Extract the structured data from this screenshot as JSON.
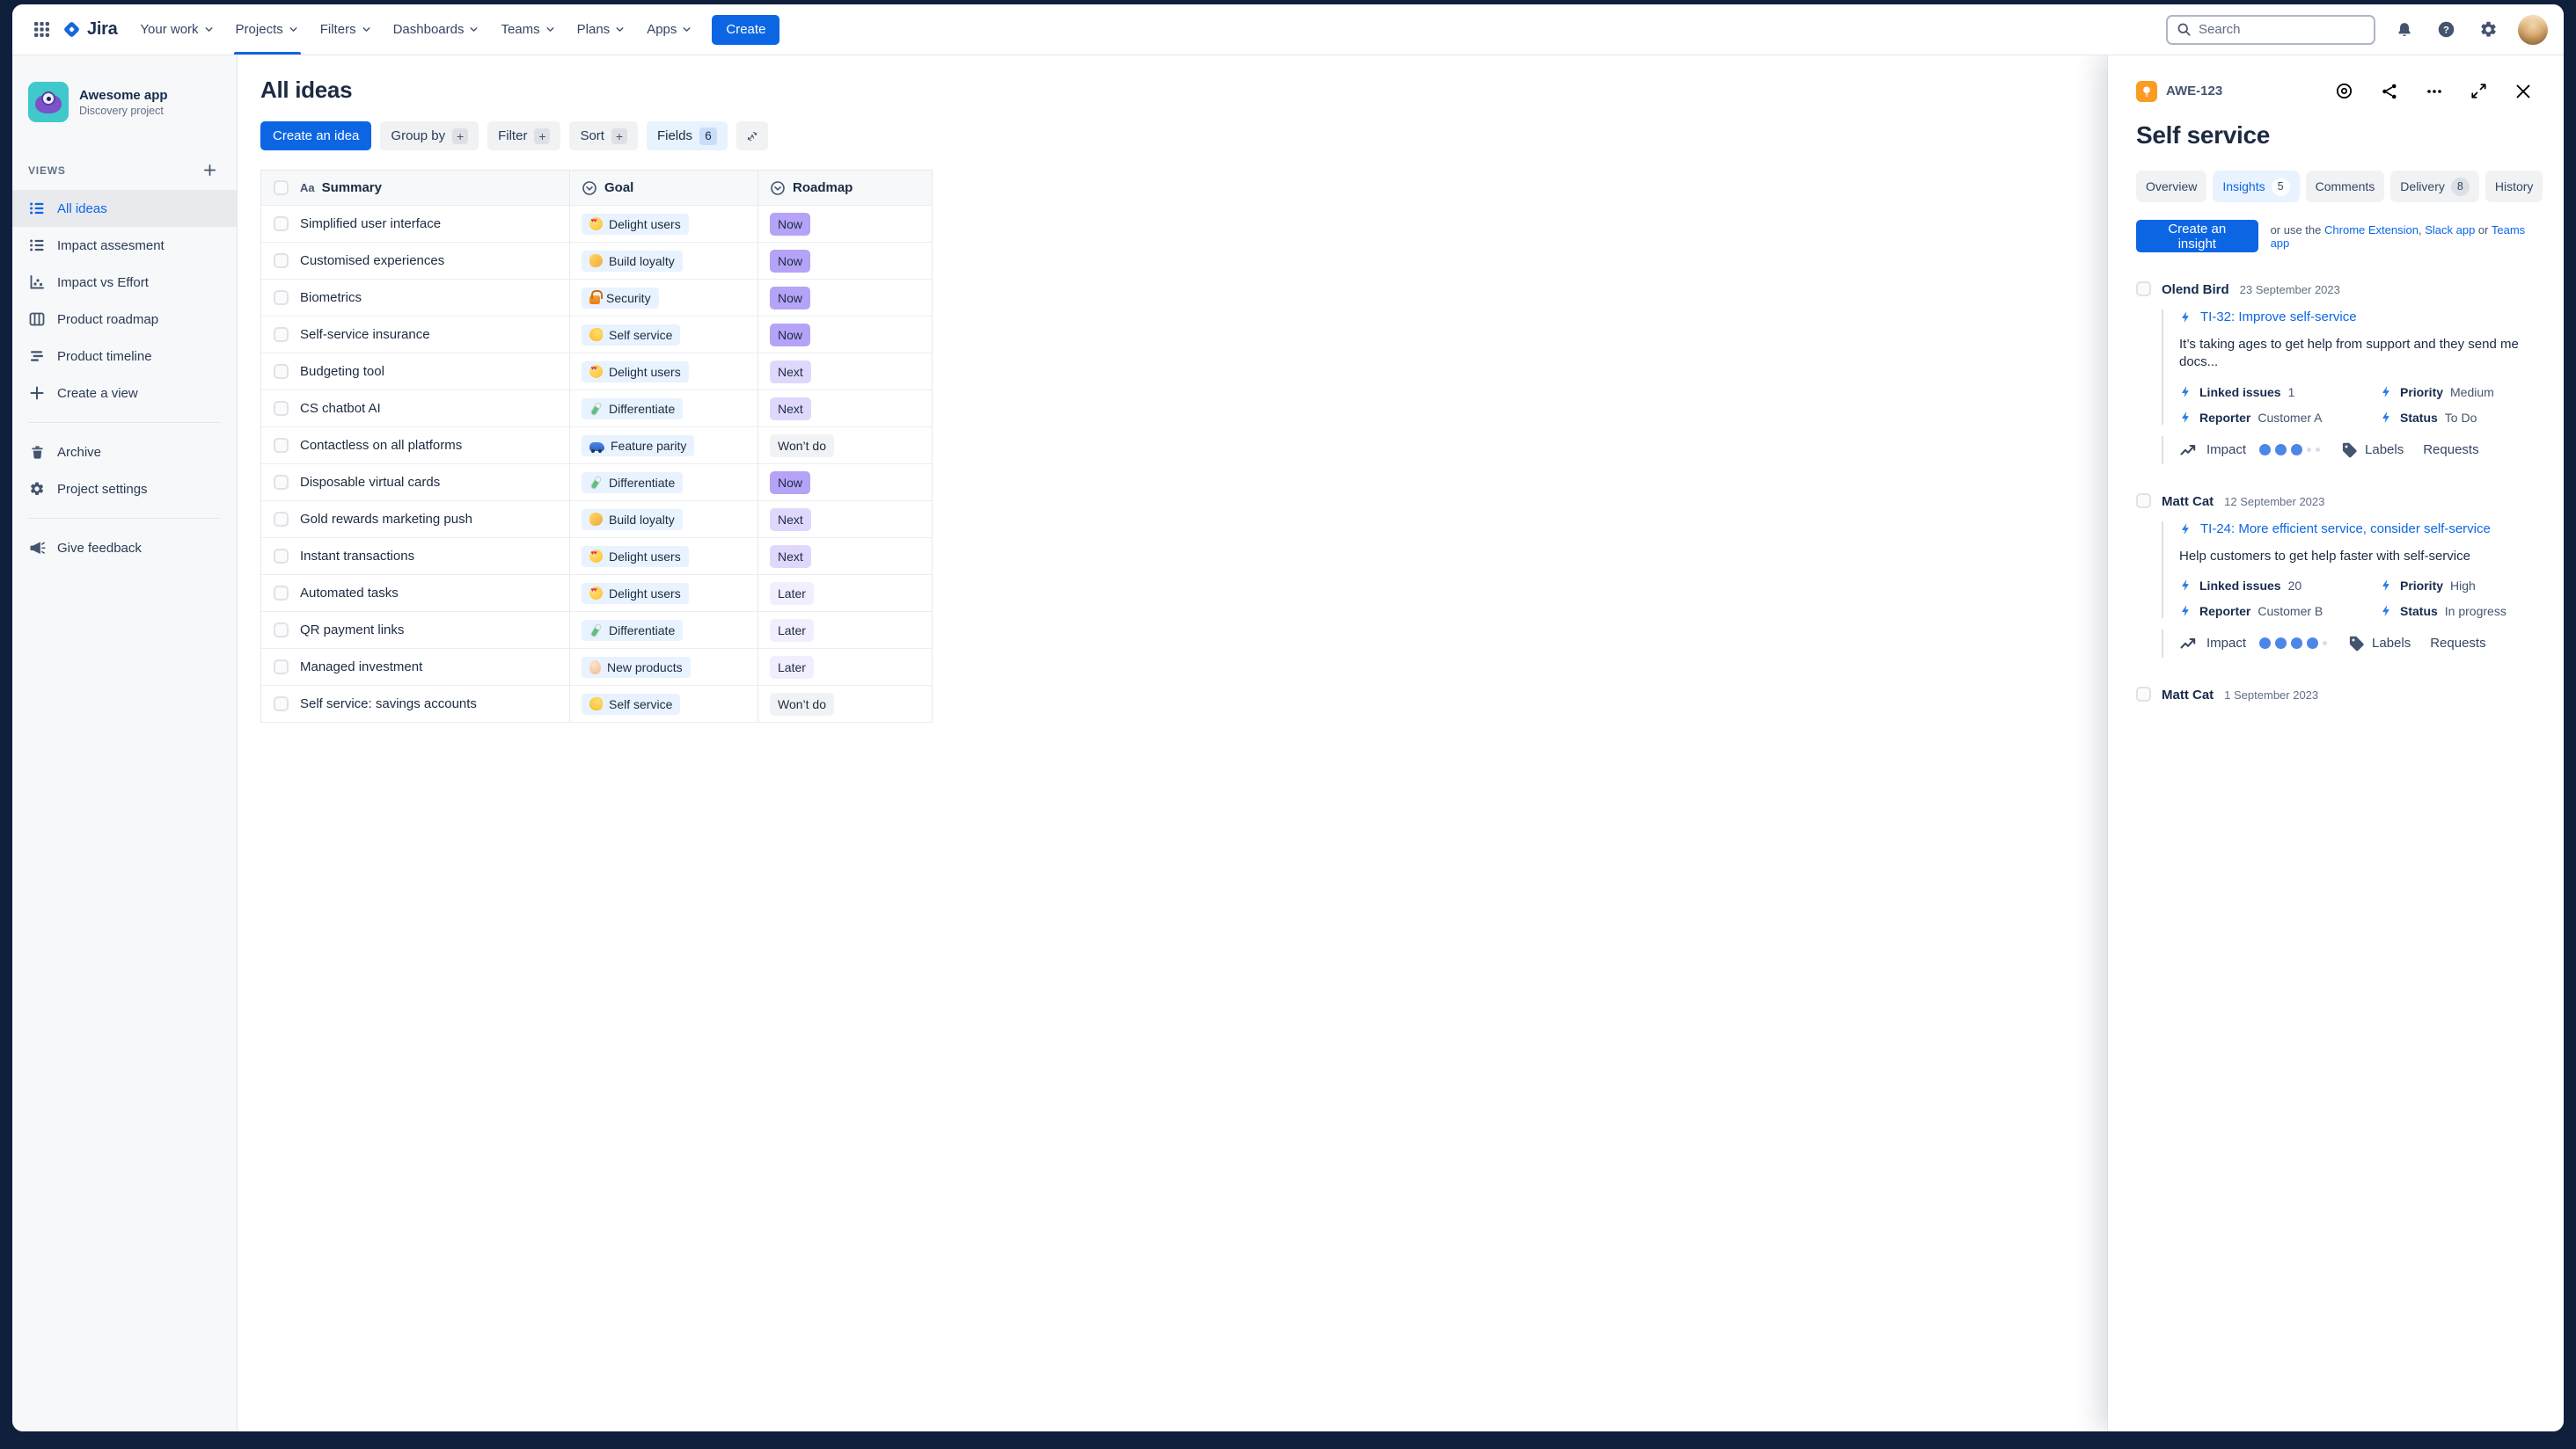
{
  "nav": {
    "logo_text": "Jira",
    "menus": [
      {
        "label": "Your work"
      },
      {
        "label": "Projects",
        "active": true
      },
      {
        "label": "Filters"
      },
      {
        "label": "Dashboards"
      },
      {
        "label": "Teams"
      },
      {
        "label": "Plans"
      },
      {
        "label": "Apps"
      }
    ],
    "create_label": "Create",
    "search_placeholder": "Search"
  },
  "sidebar": {
    "project_name": "Awesome app",
    "project_type": "Discovery project",
    "views_label": "VIEWS",
    "items": [
      {
        "label": "All ideas",
        "icon": "list",
        "selected": true
      },
      {
        "label": "Impact assesment",
        "icon": "list"
      },
      {
        "label": "Impact vs Effort",
        "icon": "scatter"
      },
      {
        "label": "Product roadmap",
        "icon": "board"
      },
      {
        "label": "Product timeline",
        "icon": "timeline"
      },
      {
        "label": "Create a view",
        "icon": "plus"
      }
    ],
    "footer_items": [
      {
        "label": "Archive",
        "icon": "trash"
      },
      {
        "label": "Project settings",
        "icon": "gear"
      }
    ],
    "feedback_label": "Give feedback"
  },
  "main": {
    "title": "All ideas",
    "toolbar": {
      "create_idea": "Create an idea",
      "group_by": "Group by",
      "filter": "Filter",
      "sort": "Sort",
      "fields": "Fields",
      "fields_count": "6"
    },
    "table": {
      "columns": [
        "Summary",
        "Goal",
        "Roadmap"
      ],
      "rows": [
        {
          "summary": "Simplified user interface",
          "goal": "Delight users",
          "goal_icon": "delight-users",
          "goal_emoji": "😍",
          "roadmap": "Now",
          "roadmap_key": "now"
        },
        {
          "summary": "Customised experiences",
          "goal": "Build loyalty",
          "goal_icon": "build-loyalty",
          "goal_emoji": "🤝",
          "roadmap": "Now",
          "roadmap_key": "now"
        },
        {
          "summary": "Biometrics",
          "goal": "Security",
          "goal_icon": "security",
          "goal_emoji": "🔒",
          "roadmap": "Now",
          "roadmap_key": "now"
        },
        {
          "summary": "Self-service insurance",
          "goal": "Self service",
          "goal_icon": "self-service",
          "goal_emoji": "💪",
          "roadmap": "Now",
          "roadmap_key": "now"
        },
        {
          "summary": "Budgeting tool",
          "goal": "Delight users",
          "goal_icon": "delight-users",
          "goal_emoji": "😍",
          "roadmap": "Next",
          "roadmap_key": "next"
        },
        {
          "summary": "CS chatbot AI",
          "goal": "Differentiate",
          "goal_icon": "differentiate",
          "goal_emoji": "🧪",
          "roadmap": "Next",
          "roadmap_key": "next"
        },
        {
          "summary": "Contactless on all platforms",
          "goal": "Feature parity",
          "goal_icon": "feature-parity",
          "goal_emoji": "🏎️",
          "roadmap": "Won’t do",
          "roadmap_key": "wontdo"
        },
        {
          "summary": "Disposable virtual cards",
          "goal": "Differentiate",
          "goal_icon": "differentiate",
          "goal_emoji": "🧪",
          "roadmap": "Now",
          "roadmap_key": "now"
        },
        {
          "summary": "Gold rewards marketing push",
          "goal": "Build loyalty",
          "goal_icon": "build-loyalty",
          "goal_emoji": "🤝",
          "roadmap": "Next",
          "roadmap_key": "next"
        },
        {
          "summary": "Instant transactions",
          "goal": "Delight users",
          "goal_icon": "delight-users",
          "goal_emoji": "😍",
          "roadmap": "Next",
          "roadmap_key": "next"
        },
        {
          "summary": "Automated tasks",
          "goal": "Delight users",
          "goal_icon": "delight-users",
          "goal_emoji": "😍",
          "roadmap": "Later",
          "roadmap_key": "later"
        },
        {
          "summary": "QR payment links",
          "goal": "Differentiate",
          "goal_icon": "differentiate",
          "goal_emoji": "🧪",
          "roadmap": "Later",
          "roadmap_key": "later"
        },
        {
          "summary": "Managed investment",
          "goal": "New products",
          "goal_icon": "new-products",
          "goal_emoji": "🥚",
          "roadmap": "Later",
          "roadmap_key": "later"
        },
        {
          "summary": "Self service: savings accounts",
          "goal": "Self service",
          "goal_icon": "self-service",
          "goal_emoji": "💪",
          "roadmap": "Won’t do",
          "roadmap_key": "wontdo"
        }
      ]
    }
  },
  "panel": {
    "issue_key": "AWE-123",
    "title": "Self service",
    "tabs": [
      {
        "label": "Overview"
      },
      {
        "label": "Insights",
        "count": "5",
        "selected": true
      },
      {
        "label": "Comments"
      },
      {
        "label": "Delivery",
        "count": "8"
      },
      {
        "label": "History"
      }
    ],
    "create_insight_label": "Create an insight",
    "helper_prefix": "or use the",
    "helper_links": [
      "Chrome Extension",
      "Slack app",
      "Teams app"
    ],
    "helper_sep1": ", ",
    "helper_sep2": " or ",
    "impact_label": "Impact",
    "insights": [
      {
        "author": "Olend Bird",
        "date": "23 September 2023",
        "issue": "TI-32: Improve self-service",
        "description": "It’s taking ages to get help from support and they send me docs...",
        "fields": [
          {
            "label": "Linked issues",
            "value": "1"
          },
          {
            "label": "Priority",
            "value": "Medium"
          },
          {
            "label": "Reporter",
            "value": "Customer A"
          },
          {
            "label": "Status",
            "value": "To Do"
          }
        ],
        "impact_filled": 3,
        "impact_total": 5,
        "labels_label": "Labels",
        "requests_label": "Requests"
      },
      {
        "author": "Matt Cat",
        "date": "12 September 2023",
        "issue": "TI-24: More efficient service, consider self-service",
        "description": "Help customers to get help faster with self-service",
        "fields": [
          {
            "label": "Linked issues",
            "value": "20"
          },
          {
            "label": "Priority",
            "value": "High"
          },
          {
            "label": "Reporter",
            "value": "Customer B"
          },
          {
            "label": "Status",
            "value": "In progress"
          }
        ],
        "impact_filled": 4,
        "impact_total": 5,
        "labels_label": "Labels",
        "requests_label": "Requests"
      },
      {
        "author": "Matt Cat",
        "date": "1 September 2023"
      }
    ]
  },
  "colors": {
    "accent_blue": "#0C66E4",
    "chip_goal_bg": "#E9F2FF",
    "chip_now": "#B5A3F8",
    "chip_next": "#DFD8FC",
    "chip_later": "#F2EEFE",
    "chip_wontdo": "#F1F2F4",
    "idea_badge_orange": "#FB9B23",
    "impact_dot_blue": "#4C86E8",
    "text_primary": "#172B4D",
    "text_secondary": "#626F86",
    "sidebar_bg": "#F7F8F9",
    "frame_bg": "#0F1F3C"
  }
}
